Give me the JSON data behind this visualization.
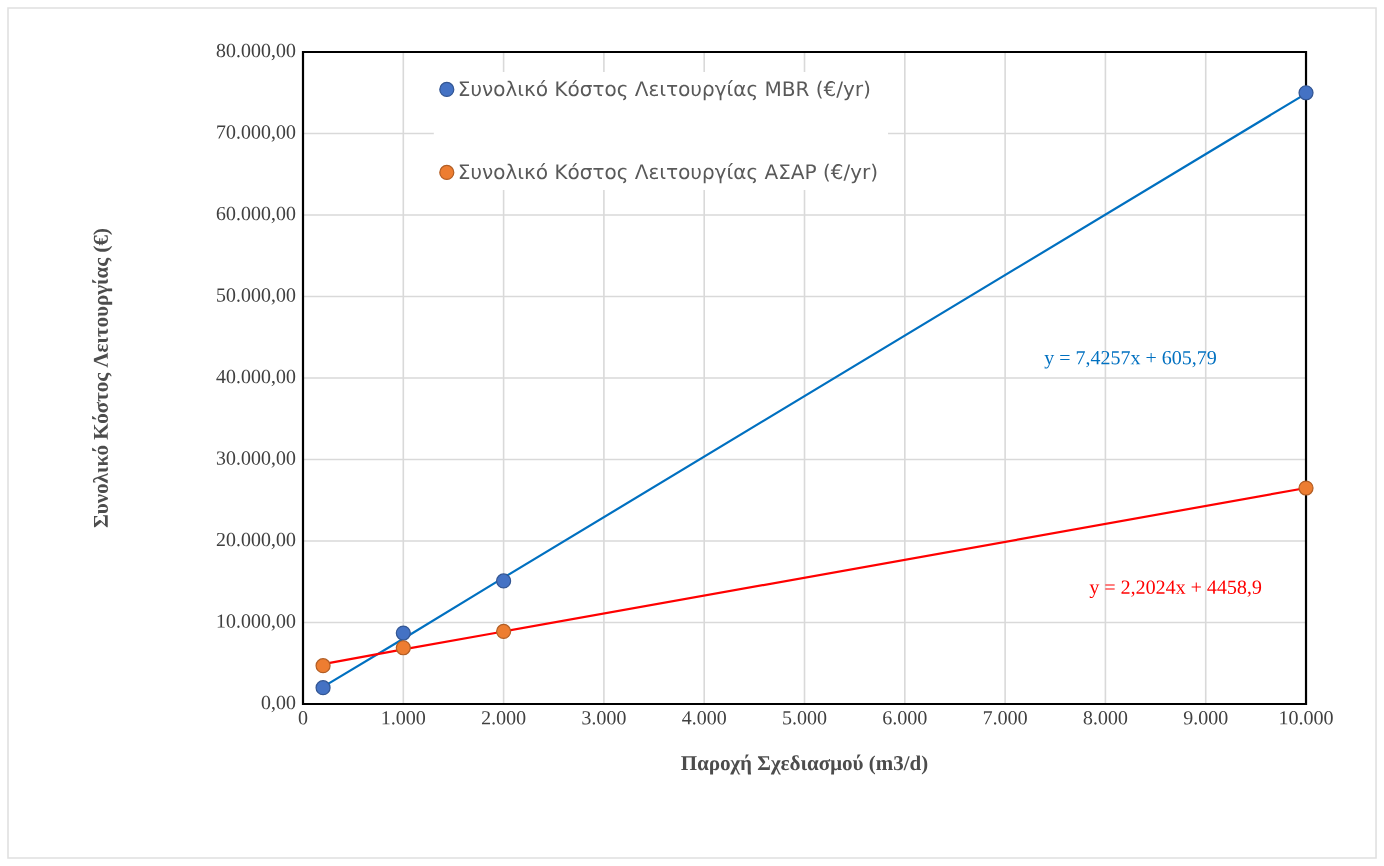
{
  "chart_data": {
    "type": "scatter",
    "xlabel": "Παροχή Σχεδιασμού (m3/d)",
    "ylabel": "Συνολικό Κόστος Λειτουργίας (€)",
    "x": [
      200,
      1000,
      2000,
      10000
    ],
    "series": [
      {
        "name": "Συνολικό Κόστος Λειτουργίας MBR (€/yr)",
        "marker": "circle",
        "color": "#4472c4",
        "values": [
          2000,
          8700,
          15100,
          75000
        ]
      },
      {
        "name": "Συνολικό Κόστος Λειτουργίας ΑΣΑΡ (€/yr)",
        "marker": "circle",
        "color": "#ed7d31",
        "values": [
          4700,
          6900,
          8900,
          26500
        ]
      },
      {
        "type": "line",
        "color": "#0070c0",
        "values": [
          2100,
          8000,
          15500,
          74900
        ]
      },
      {
        "type": "line",
        "color": "#ff0000",
        "values": [
          4900,
          6700,
          8900,
          26500
        ]
      }
    ],
    "annotations": [
      "y = 7,4257x + 605,79",
      "y = 2,2024x + 4458,9"
    ],
    "xlim": [
      0,
      10000
    ],
    "ylim": [
      0,
      80000
    ],
    "xticks": [
      0,
      {
        "value": 1000,
        "label": "1.000"
      },
      {
        "value": 2000,
        "label": "2.000"
      },
      {
        "value": 3000,
        "label": "3.000"
      },
      {
        "value": 4000,
        "label": "4.000"
      },
      {
        "value": 5000,
        "label": "5.000"
      },
      {
        "value": 6000,
        "label": "6.000"
      },
      {
        "value": 7000,
        "label": "7.000"
      },
      {
        "value": 8000,
        "label": "8.000"
      },
      {
        "value": 9000,
        "label": "9.000"
      },
      {
        "value": 10000,
        "label": "10.000"
      }
    ],
    "yticks": [
      {
        "value": 0,
        "label": "0,00"
      },
      {
        "value": 10000,
        "label": "10.000,00"
      },
      {
        "value": 20000,
        "label": "20.000,00"
      },
      {
        "value": 30000,
        "label": "30.000,00"
      },
      {
        "value": 40000,
        "label": "40.000,00"
      },
      {
        "value": 50000,
        "label": "50.000,00"
      },
      {
        "value": 60000,
        "label": "60.000,00"
      },
      {
        "value": 70000,
        "label": "70.000,00"
      },
      {
        "value": 80000,
        "label": "80.000,00"
      }
    ],
    "grid": true,
    "legend": "top left"
  }
}
